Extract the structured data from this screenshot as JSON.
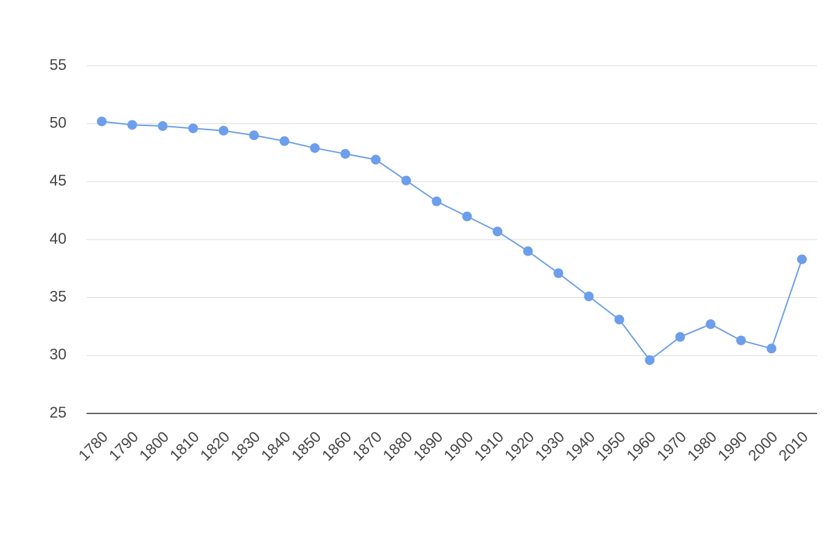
{
  "chart_data": {
    "type": "line",
    "categories": [
      "1780",
      "1790",
      "1800",
      "1810",
      "1820",
      "1830",
      "1840",
      "1850",
      "1860",
      "1870",
      "1880",
      "1890",
      "1900",
      "1910",
      "1920",
      "1930",
      "1940",
      "1950",
      "1960",
      "1970",
      "1980",
      "1990",
      "2000",
      "2010"
    ],
    "values": [
      50.2,
      49.9,
      49.8,
      49.6,
      49.4,
      49.0,
      48.5,
      47.9,
      47.4,
      46.9,
      45.1,
      43.3,
      42.0,
      40.7,
      39.0,
      37.1,
      35.1,
      33.1,
      29.6,
      31.6,
      32.7,
      31.3,
      30.6,
      38.3
    ],
    "color": "#6d9eeb",
    "ylim": [
      25,
      55
    ],
    "yticks": [
      25,
      30,
      35,
      40,
      45,
      50,
      55
    ],
    "grid": true
  }
}
